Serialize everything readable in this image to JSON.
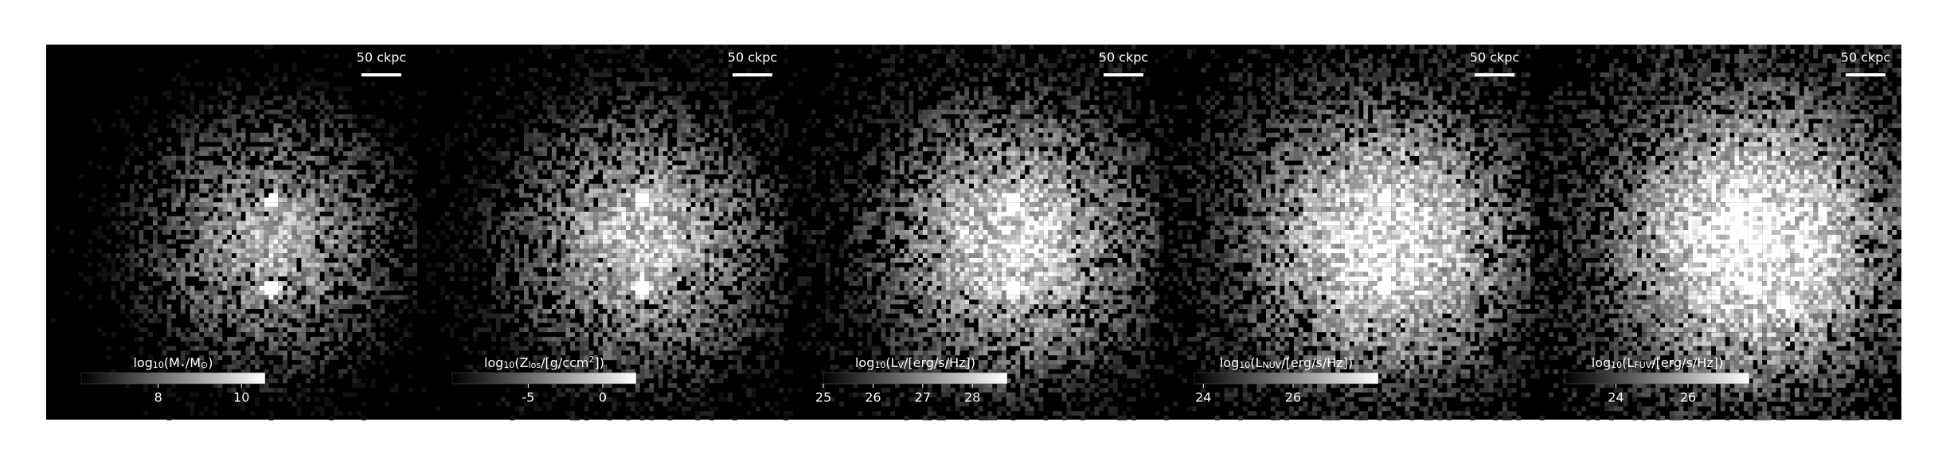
{
  "chart_data": [
    {
      "type": "image",
      "scale_label": "50 ckpc",
      "colorbar": {
        "label": [
          {
            "text": "log"
          },
          {
            "text": "10",
            "sub": true
          },
          {
            "text": "(M"
          },
          {
            "text": "⋆",
            "sub": true
          },
          {
            "text": "/M"
          },
          {
            "text": "⊙",
            "sub": true
          },
          {
            "text": ")"
          }
        ],
        "lim": [
          6.15,
          10.57
        ],
        "ticks": [
          8,
          10
        ]
      }
    },
    {
      "type": "image",
      "scale_label": "50 ckpc",
      "colorbar": {
        "label": [
          {
            "text": "log"
          },
          {
            "text": "10",
            "sub": true
          },
          {
            "text": "(Z"
          },
          {
            "text": "los",
            "sub": true
          },
          {
            "text": "/[g/ccm"
          },
          {
            "text": "2",
            "sup": true
          },
          {
            "text": "])"
          }
        ],
        "lim": [
          -10.1,
          2.25
        ],
        "ticks": [
          -5,
          0
        ]
      }
    },
    {
      "type": "image",
      "scale_label": "50 ckpc",
      "colorbar": {
        "label": [
          {
            "text": "log"
          },
          {
            "text": "10",
            "sub": true
          },
          {
            "text": "(L"
          },
          {
            "text": "V",
            "sub": true
          },
          {
            "text": "/[erg/s/Hz])"
          }
        ],
        "lim": [
          25,
          28.7
        ],
        "ticks": [
          25,
          26,
          27,
          28
        ]
      }
    },
    {
      "type": "image",
      "scale_label": "50 ckpc",
      "colorbar": {
        "label": [
          {
            "text": "log"
          },
          {
            "text": "10",
            "sub": true
          },
          {
            "text": "(L"
          },
          {
            "text": "NUV",
            "sub": true
          },
          {
            "text": "/[erg/s/Hz])"
          }
        ],
        "lim": [
          23.8,
          27.9
        ],
        "ticks": [
          24,
          26
        ]
      }
    },
    {
      "type": "image",
      "scale_label": "50 ckpc",
      "colorbar": {
        "label": [
          {
            "text": "log"
          },
          {
            "text": "10",
            "sub": true
          },
          {
            "text": "(L"
          },
          {
            "text": "FUV",
            "sub": true
          },
          {
            "text": "/[erg/s/Hz])"
          }
        ],
        "lim": [
          22.6,
          27.7
        ],
        "ticks": [
          24,
          26
        ]
      }
    }
  ]
}
